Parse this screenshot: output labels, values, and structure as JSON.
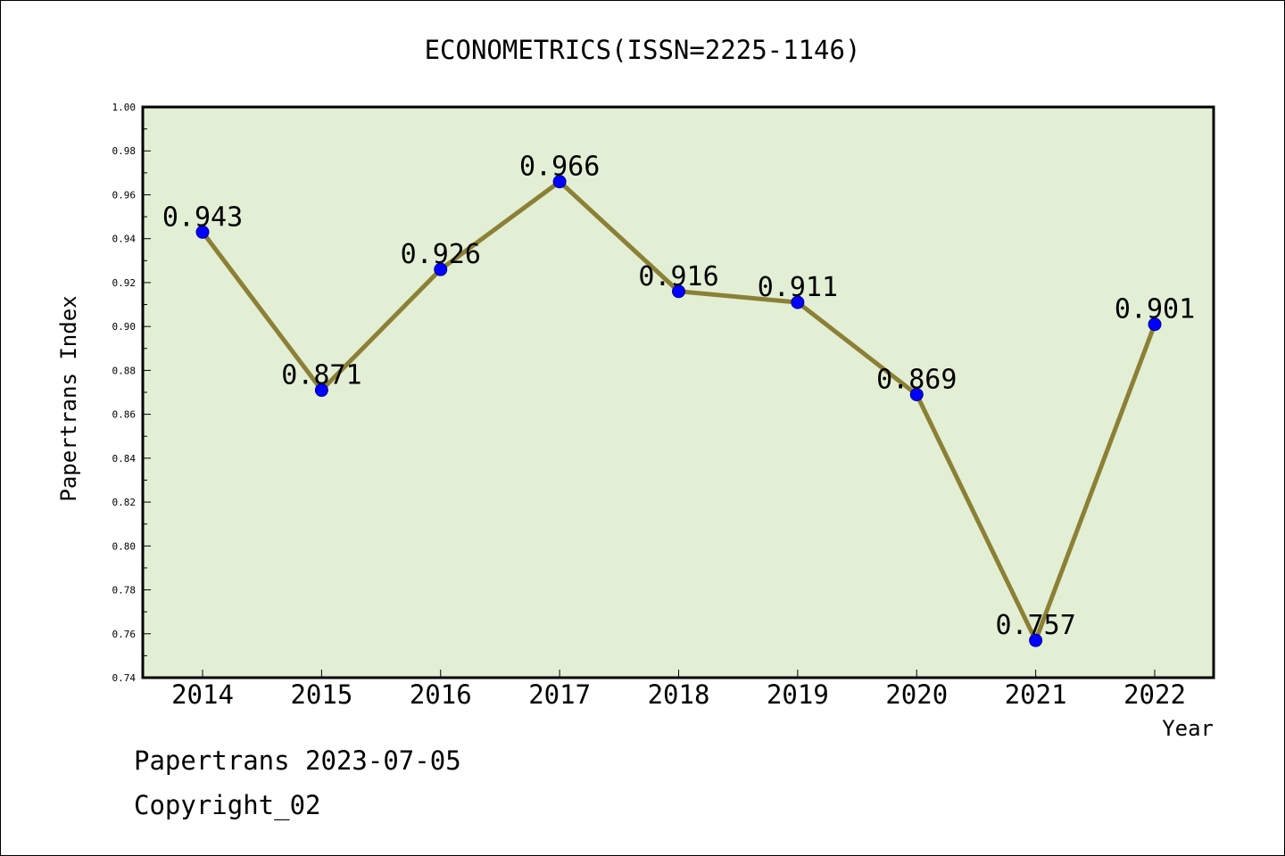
{
  "chart_data": {
    "type": "line",
    "title": "ECONOMETRICS(ISSN=2225-1146)",
    "xlabel": "Year",
    "ylabel": "Papertrans Index",
    "categories": [
      "2014",
      "2015",
      "2016",
      "2017",
      "2018",
      "2019",
      "2020",
      "2021",
      "2022"
    ],
    "series": [
      {
        "values": [
          0.943,
          0.871,
          0.926,
          0.966,
          0.916,
          0.911,
          0.869,
          0.757,
          0.901
        ]
      }
    ],
    "data_labels": [
      "0.943",
      "0.871",
      "0.926",
      "0.966",
      "0.916",
      "0.911",
      "0.869",
      "0.757",
      "0.901"
    ],
    "ylim": [
      0.74,
      1.0
    ],
    "yticks": [
      "0.74",
      "0.76",
      "0.78",
      "0.80",
      "0.82",
      "0.84",
      "0.86",
      "0.88",
      "0.90",
      "0.92",
      "0.94",
      "0.96",
      "0.98",
      "1.00"
    ],
    "grid": false,
    "legend": "none",
    "colors": {
      "plot_background": "#e2efd5",
      "line": "#8b8035",
      "marker": "#0000ff"
    }
  },
  "footer": {
    "line1": "Papertrans 2023-07-05",
    "line2": "Copyright_02"
  }
}
